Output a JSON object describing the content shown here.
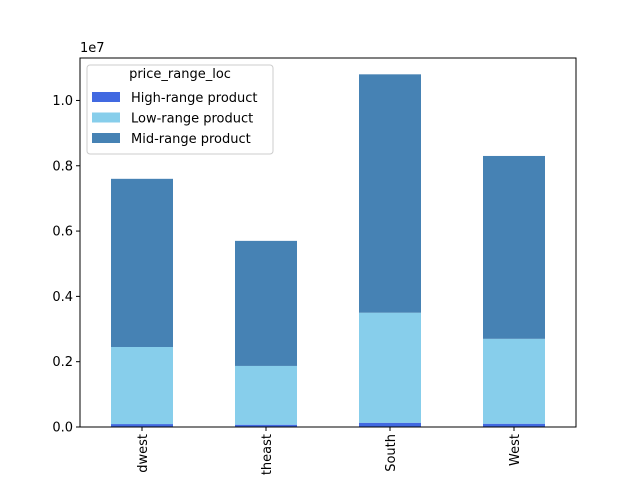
{
  "chart_data": {
    "type": "bar",
    "stacked": true,
    "categories": [
      "Midwest",
      "Northeast",
      "South",
      "West"
    ],
    "category_tick_labels": [
      "dwest",
      "theast",
      "South",
      "West"
    ],
    "series": [
      {
        "name": "High-range product",
        "values": [
          90000,
          70000,
          130000,
          100000
        ],
        "color": "#4169E1"
      },
      {
        "name": "Low-range product",
        "values": [
          2360000,
          1800000,
          3370000,
          2600000
        ],
        "color": "#87CEEB"
      },
      {
        "name": "Mid-range product",
        "values": [
          5150000,
          3830000,
          7300000,
          5600000
        ],
        "color": "#4682B4"
      }
    ],
    "ylim": [
      0,
      11300000
    ],
    "y_ticks": [
      0,
      2000000,
      4000000,
      6000000,
      8000000,
      10000000
    ],
    "y_tick_labels": [
      "0.0",
      "0.2",
      "0.4",
      "0.6",
      "0.8",
      "1.0"
    ],
    "y_offset_label": "1e7",
    "legend": {
      "title": "price_range_loc",
      "placement": "upper-left"
    },
    "grid": false,
    "title": "",
    "xlabel": "",
    "ylabel": ""
  }
}
